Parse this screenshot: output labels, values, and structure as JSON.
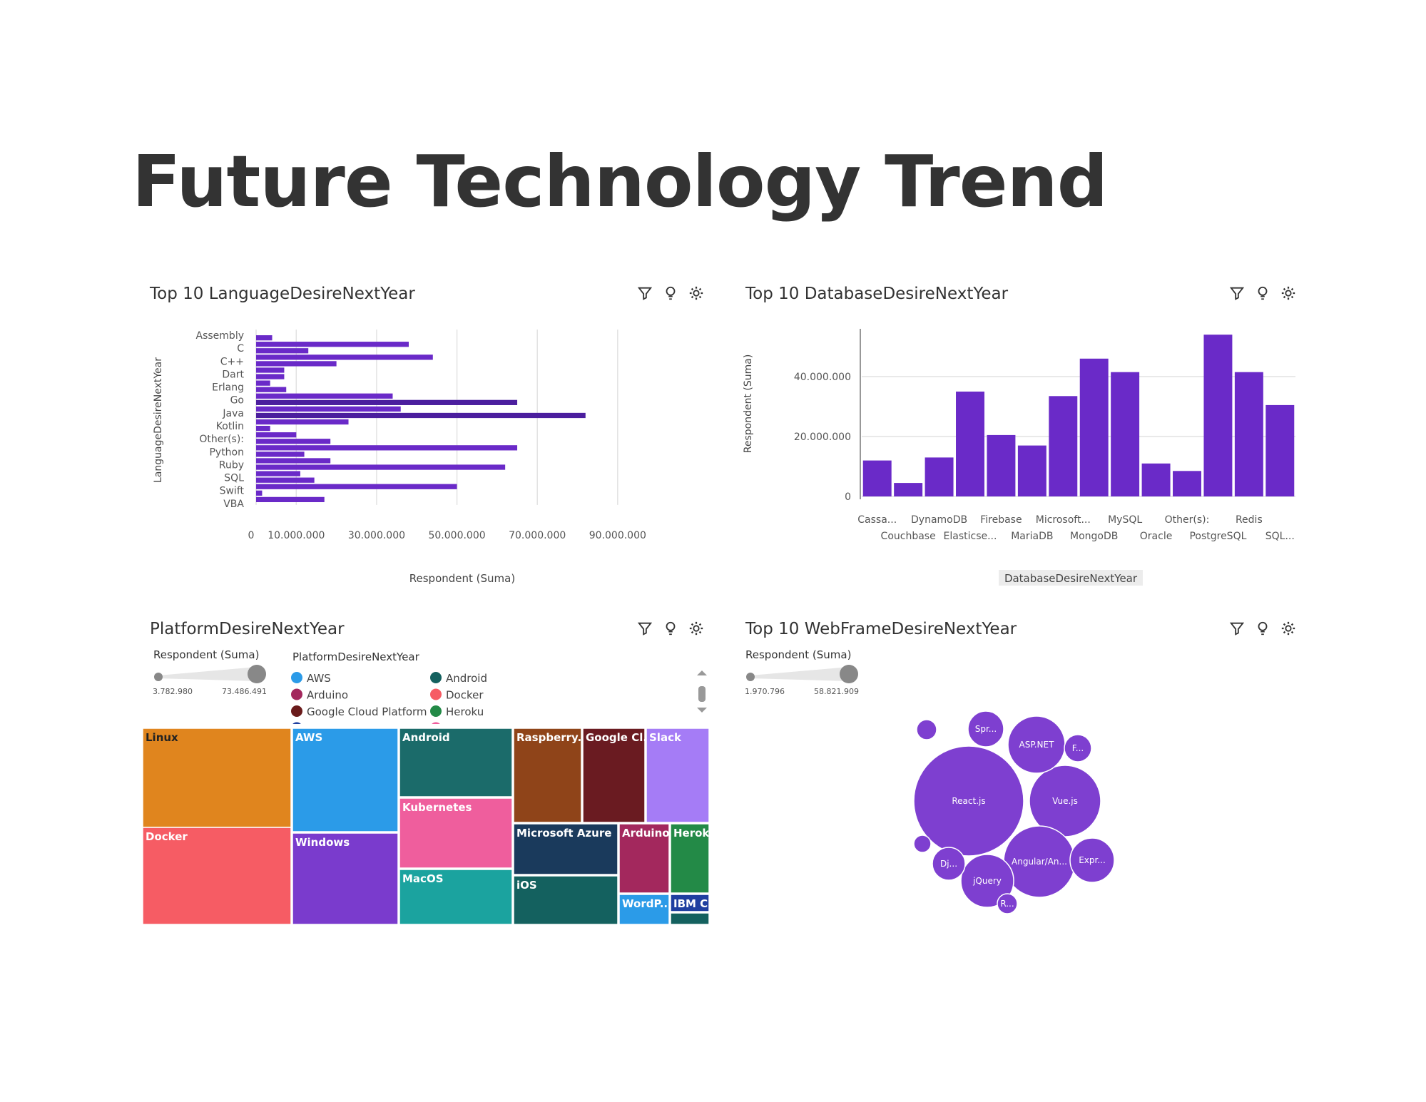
{
  "page": {
    "title": "Future Technology Trend"
  },
  "colors": {
    "accent": "#6a2ac8",
    "accent_dark": "#4b1e9e",
    "bubble": "#7e3fd0"
  },
  "icons": [
    "filter-icon",
    "lightbulb-icon",
    "settings-icon"
  ],
  "chart_data": [
    {
      "type": "bar",
      "orientation": "horizontal",
      "title": "Top 10 LanguageDesireNextYear",
      "xlabel": "Respondent (Suma)",
      "ylabel": "LanguageDesireNextYear",
      "xlim": [
        0,
        95000000
      ],
      "xticks": [
        "0",
        "10.000.000",
        "30.000.000",
        "50.000.000",
        "70.000.000",
        "90.000.000"
      ],
      "category_labels": [
        "Assembly",
        "C",
        "C++",
        "Dart",
        "Erlang",
        "Go",
        "Java",
        "Kotlin",
        "Other(s):",
        "Python",
        "Ruby",
        "SQL",
        "Swift",
        "VBA"
      ],
      "values": [
        4000000,
        38000000,
        13000000,
        44000000,
        20000000,
        7000000,
        7000000,
        3500000,
        7500000,
        34000000,
        65000000,
        36000000,
        82000000,
        23000000,
        3500000,
        10000000,
        18500000,
        65000000,
        12000000,
        18500000,
        62000000,
        11000000,
        14500000,
        50000000,
        1500000,
        17000000
      ]
    },
    {
      "type": "bar",
      "title": "Top 10 DatabaseDesireNextYear",
      "xlabel": "DatabaseDesireNextYear",
      "ylabel": "Respondent (Suma)",
      "ylim": [
        0,
        55000000
      ],
      "yticks": [
        "0",
        "20.000.000",
        "40.000.000"
      ],
      "categories": [
        "Cassa...",
        "Couchbase",
        "DynamoDB",
        "Elasticse...",
        "Firebase",
        "MariaDB",
        "Microsoft...",
        "MongoDB",
        "MySQL",
        "Oracle",
        "Other(s):",
        "PostgreSQL",
        "Redis",
        "SQL..."
      ],
      "values": [
        12000000,
        4500000,
        13000000,
        35000000,
        20500000,
        17000000,
        33500000,
        46000000,
        41500000,
        11000000,
        8500000,
        54000000,
        41500000,
        30500000
      ]
    },
    {
      "type": "treemap",
      "title": "PlatformDesireNextYear",
      "size_label": "Respondent (Suma)",
      "size_min": "3.782.980",
      "size_max": "73.486.491",
      "legend_title": "PlatformDesireNextYear",
      "legend": [
        {
          "name": "AWS",
          "color": "#2b9be8"
        },
        {
          "name": "Android",
          "color": "#14615f"
        },
        {
          "name": "Arduino",
          "color": "#a3285d"
        },
        {
          "name": "Docker",
          "color": "#f65c64"
        },
        {
          "name": "Google Cloud Platform",
          "color": "#6a1b1b"
        },
        {
          "name": "Heroku",
          "color": "#238a47"
        },
        {
          "name": "IBM Cloud or Watson",
          "color": "#1f3fa0"
        },
        {
          "name": "Kubernetes",
          "color": "#ef5e9d"
        }
      ],
      "tiles": [
        {
          "label": "Linux",
          "color": "#e0851e"
        },
        {
          "label": "Docker",
          "color": "#f65c64"
        },
        {
          "label": "AWS",
          "color": "#2b9be8"
        },
        {
          "label": "Windows",
          "color": "#7a3bcd"
        },
        {
          "label": "Android",
          "color": "#1b6b6a"
        },
        {
          "label": "Kubernetes",
          "color": "#ef5e9d"
        },
        {
          "label": "MacOS",
          "color": "#1ba39f"
        },
        {
          "label": "Raspberry...",
          "color": "#8f4419"
        },
        {
          "label": "Google Cl...",
          "color": "#6a1b21"
        },
        {
          "label": "Slack",
          "color": "#a57cf6"
        },
        {
          "label": "Microsoft Azure",
          "color": "#1a3a5c"
        },
        {
          "label": "iOS",
          "color": "#14615f"
        },
        {
          "label": "Arduino",
          "color": "#a3285d"
        },
        {
          "label": "Heroku",
          "color": "#238a47"
        },
        {
          "label": "WordP...",
          "color": "#2b9be8"
        },
        {
          "label": "IBM C...",
          "color": "#1f3fa0"
        },
        {
          "label": "",
          "color": "#14615f"
        }
      ]
    },
    {
      "type": "bubble",
      "title": "Top 10 WebFrameDesireNextYear",
      "size_label": "Respondent (Suma)",
      "size_min": "1.970.796",
      "size_max": "58.821.909",
      "bubbles": [
        "React.js",
        "Vue.js",
        "ASP.NET",
        "Angular/An...",
        "jQuery",
        "Expr...",
        "Spr...",
        "F...",
        "Dj...",
        "R...",
        "",
        ""
      ]
    }
  ]
}
